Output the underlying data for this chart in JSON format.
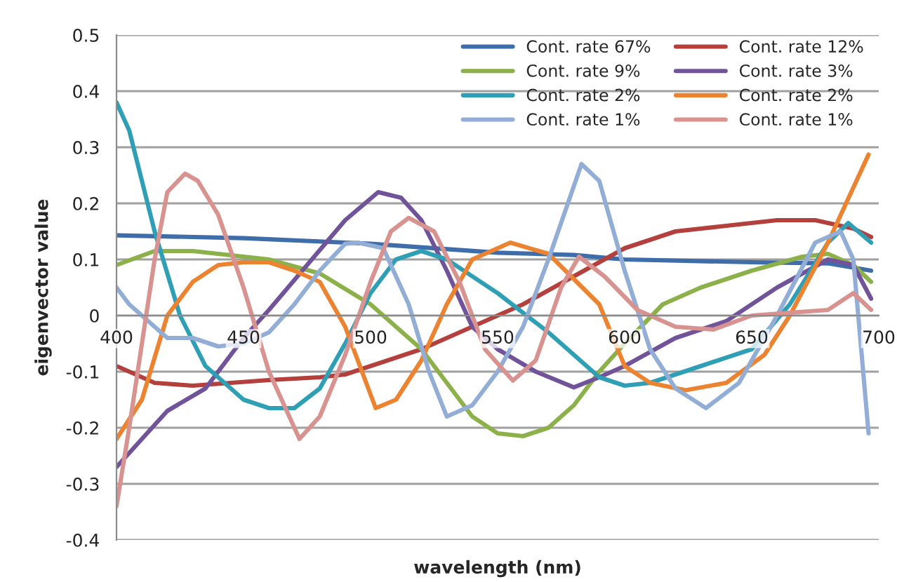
{
  "chart_data": {
    "type": "line",
    "xlabel": "wavelength (nm)",
    "ylabel": "eigenvector value",
    "xlim": [
      400,
      700
    ],
    "xticks": [
      400,
      450,
      500,
      550,
      600,
      650,
      700
    ],
    "ylim": [
      -0.4,
      0.5
    ],
    "yticks": [
      -0.4,
      -0.3,
      -0.2,
      -0.1,
      0,
      0.1,
      0.2,
      0.3,
      0.4,
      0.5
    ],
    "grid": "y",
    "legend": "top right",
    "marker": "none",
    "line_style": "solid",
    "series": [
      {
        "name": "Cont. rate 67%",
        "color": "#3f6daa",
        "x": [
          400,
          450,
          500,
          550,
          580,
          600,
          650,
          680,
          697
        ],
        "values": [
          0.143,
          0.138,
          0.128,
          0.112,
          0.108,
          0.1,
          0.095,
          0.093,
          0.08
        ]
      },
      {
        "name": "Cont. rate 12%",
        "color": "#b3403d",
        "x": [
          400,
          415,
          430,
          460,
          480,
          490,
          500,
          520,
          540,
          560,
          580,
          600,
          620,
          640,
          660,
          675,
          690,
          697
        ],
        "values": [
          -0.09,
          -0.12,
          -0.125,
          -0.115,
          -0.11,
          -0.105,
          -0.09,
          -0.06,
          -0.02,
          0.02,
          0.07,
          0.12,
          0.15,
          0.16,
          0.17,
          0.17,
          0.155,
          0.14
        ]
      },
      {
        "name": "Cont. rate 9%",
        "color": "#8cb04a",
        "x": [
          400,
          415,
          430,
          460,
          480,
          500,
          520,
          530,
          540,
          550,
          560,
          570,
          580,
          590,
          600,
          615,
          630,
          650,
          670,
          680,
          690,
          697
        ],
        "values": [
          0.09,
          0.115,
          0.115,
          0.1,
          0.075,
          0.02,
          -0.06,
          -0.12,
          -0.18,
          -0.21,
          -0.215,
          -0.2,
          -0.16,
          -0.1,
          -0.05,
          0.02,
          0.05,
          0.08,
          0.105,
          0.11,
          0.09,
          0.06
        ]
      },
      {
        "name": "Cont. rate 3%",
        "color": "#71539a",
        "x": [
          400,
          410,
          420,
          435,
          450,
          460,
          475,
          490,
          503,
          512,
          520,
          530,
          540,
          550,
          565,
          580,
          590,
          600,
          620,
          640,
          660,
          680,
          690,
          697
        ],
        "values": [
          -0.27,
          -0.22,
          -0.17,
          -0.13,
          -0.04,
          0.01,
          0.09,
          0.17,
          0.22,
          0.21,
          0.17,
          0.08,
          -0.02,
          -0.06,
          -0.1,
          -0.128,
          -0.11,
          -0.09,
          -0.04,
          -0.01,
          0.05,
          0.1,
          0.09,
          0.03
        ]
      },
      {
        "name": "Cont. rate 2%",
        "color": "#2f9fb5",
        "x": [
          400,
          405,
          415,
          425,
          435,
          450,
          460,
          470,
          480,
          490,
          500,
          510,
          520,
          530,
          550,
          570,
          590,
          600,
          610,
          630,
          650,
          665,
          680,
          688,
          697
        ],
        "values": [
          0.38,
          0.33,
          0.15,
          0.0,
          -0.09,
          -0.15,
          -0.165,
          -0.165,
          -0.13,
          -0.05,
          0.04,
          0.1,
          0.115,
          0.1,
          0.04,
          -0.03,
          -0.11,
          -0.125,
          -0.12,
          -0.09,
          -0.06,
          0.02,
          0.13,
          0.165,
          0.13
        ]
      },
      {
        "name": "Cont. rate 2%",
        "color": "#ec8330",
        "x": [
          400,
          410,
          420,
          430,
          440,
          450,
          460,
          470,
          480,
          490,
          502,
          510,
          520,
          530,
          540,
          555,
          570,
          590,
          600,
          610,
          624,
          640,
          655,
          665,
          680,
          696
        ],
        "values": [
          -0.22,
          -0.15,
          0.0,
          0.06,
          0.09,
          0.095,
          0.095,
          0.08,
          0.06,
          -0.02,
          -0.165,
          -0.15,
          -0.08,
          0.02,
          0.1,
          0.13,
          0.11,
          0.02,
          -0.09,
          -0.12,
          -0.133,
          -0.12,
          -0.07,
          0.0,
          0.13,
          0.287
        ]
      },
      {
        "name": "Cont. rate 1%",
        "color": "#92add6",
        "x": [
          400,
          405,
          415,
          420,
          430,
          440,
          450,
          460,
          470,
          480,
          490,
          495,
          505,
          515,
          523,
          530,
          540,
          550,
          560,
          570,
          583,
          590,
          600,
          610,
          620,
          632,
          645,
          660,
          675,
          685,
          690,
          696
        ],
        "values": [
          0.05,
          0.02,
          -0.02,
          -0.04,
          -0.04,
          -0.055,
          -0.05,
          -0.03,
          0.02,
          0.08,
          0.128,
          0.13,
          0.12,
          0.02,
          -0.1,
          -0.18,
          -0.16,
          -0.1,
          -0.02,
          0.1,
          0.27,
          0.24,
          0.08,
          -0.06,
          -0.13,
          -0.165,
          -0.12,
          0.0,
          0.13,
          0.15,
          0.1,
          -0.21
        ]
      },
      {
        "name": "Cont. rate 1%",
        "color": "#d89290",
        "x": [
          400,
          405,
          410,
          415,
          420,
          427,
          432,
          440,
          450,
          460,
          472,
          480,
          490,
          500,
          508,
          515,
          525,
          535,
          545,
          556,
          565,
          575,
          582,
          592,
          605,
          620,
          635,
          650,
          665,
          680,
          690,
          697
        ],
        "values": [
          -0.34,
          -0.2,
          -0.05,
          0.1,
          0.22,
          0.253,
          0.24,
          0.18,
          0.05,
          -0.1,
          -0.22,
          -0.18,
          -0.07,
          0.06,
          0.15,
          0.174,
          0.15,
          0.06,
          -0.06,
          -0.116,
          -0.08,
          0.05,
          0.105,
          0.07,
          0.01,
          -0.02,
          -0.025,
          0.0,
          0.005,
          0.01,
          0.04,
          0.01
        ]
      }
    ]
  }
}
